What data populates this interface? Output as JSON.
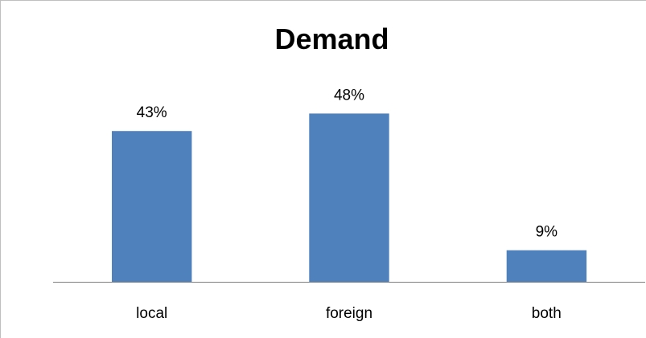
{
  "chart_data": {
    "type": "bar",
    "title": "Demand",
    "categories": [
      "local",
      "foreign",
      "both"
    ],
    "values": [
      43,
      48,
      9
    ],
    "data_labels": [
      "43%",
      "48%",
      "9%"
    ],
    "unit": "%",
    "ylim": [
      0,
      60
    ],
    "grid": false,
    "legend": "none",
    "bar_color": "#4f81bd",
    "axis_color": "#7f7f7f"
  }
}
